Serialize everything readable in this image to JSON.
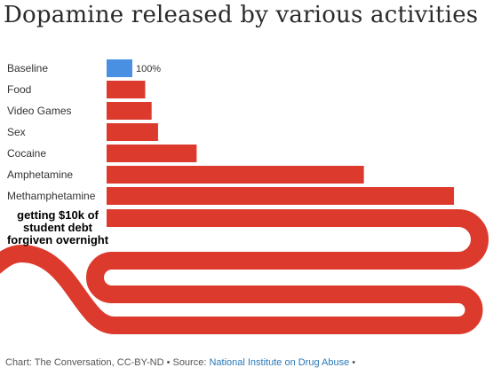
{
  "chart_data": {
    "type": "bar",
    "orientation": "horizontal",
    "title": "Dopamine released by various activities",
    "categories": [
      "Baseline",
      "Food",
      "Video Games",
      "Sex",
      "Cocaine",
      "Amphetamine",
      "Methamphetamine"
    ],
    "values": [
      100,
      150,
      175,
      200,
      350,
      1000,
      1350
    ],
    "value_labels": [
      "100%",
      "",
      "",
      "",
      "",
      "",
      ""
    ],
    "colors": [
      "#4a90e2",
      "#dc3a2d",
      "#dc3a2d",
      "#dc3a2d",
      "#dc3a2d",
      "#dc3a2d",
      "#dc3a2d"
    ],
    "xlim": [
      0,
      1450
    ],
    "grid": false,
    "legend": "none",
    "annotation": "getting $10k of student debt forgiven overnight",
    "annotation_color": "#dc3a2d"
  },
  "footer": {
    "credit": "Chart: The Conversation, CC-BY-ND • Source: ",
    "source_link": "National Institute on Drug Abuse",
    "trailing": " •"
  }
}
